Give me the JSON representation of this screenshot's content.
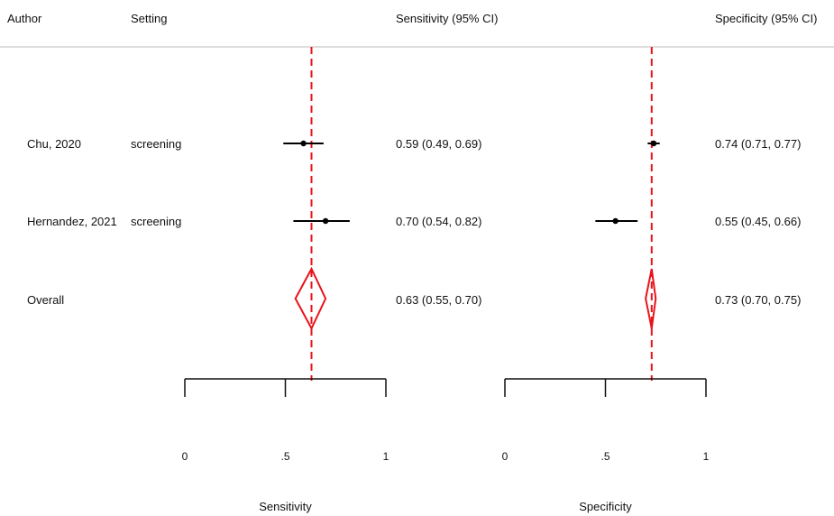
{
  "headers": {
    "author": "Author",
    "setting": "Setting",
    "sensitivity_col": "Sensitivity (95% CI)",
    "specificity_col": "Specificity (95% CI)"
  },
  "rows": [
    {
      "author": "Chu, 2020",
      "setting": "screening",
      "sensitivity_text": "0.59 (0.49, 0.69)",
      "specificity_text": "0.74 (0.71, 0.77)"
    },
    {
      "author": "Hernandez, 2021",
      "setting": "screening",
      "sensitivity_text": "0.70 (0.54, 0.82)",
      "specificity_text": "0.55 (0.45, 0.66)"
    },
    {
      "author": "Overall",
      "setting": "",
      "sensitivity_text": "0.63 (0.55, 0.70)",
      "specificity_text": "0.73 (0.70, 0.75)"
    }
  ],
  "axes": {
    "sensitivity": {
      "title": "Sensitivity",
      "ticks": [
        0,
        0.5,
        1
      ],
      "tick_labels": [
        "0",
        ".5",
        "1"
      ]
    },
    "specificity": {
      "title": "Specificity",
      "ticks": [
        0,
        0.5,
        1
      ],
      "tick_labels": [
        "0",
        ".5",
        "1"
      ]
    }
  },
  "colors": {
    "text": "#111111",
    "study": "#000000",
    "overall": "#e8141b",
    "reference_line": "#e8141b",
    "header_rule": "#bdbdbd"
  },
  "chart_data": [
    {
      "type": "forest",
      "xlabel": "Sensitivity",
      "xlim": [
        0,
        1
      ],
      "series": [
        {
          "name": "Chu, 2020",
          "estimate": 0.59,
          "lower": 0.49,
          "upper": 0.69
        },
        {
          "name": "Hernandez, 2021",
          "estimate": 0.7,
          "lower": 0.54,
          "upper": 0.82
        }
      ],
      "overall": {
        "estimate": 0.63,
        "lower": 0.55,
        "upper": 0.7
      },
      "reference_line": 0.63
    },
    {
      "type": "forest",
      "xlabel": "Specificity",
      "xlim": [
        0,
        1
      ],
      "series": [
        {
          "name": "Chu, 2020",
          "estimate": 0.74,
          "lower": 0.71,
          "upper": 0.77
        },
        {
          "name": "Hernandez, 2021",
          "estimate": 0.55,
          "lower": 0.45,
          "upper": 0.66
        }
      ],
      "overall": {
        "estimate": 0.73,
        "lower": 0.7,
        "upper": 0.75
      },
      "reference_line": 0.73
    }
  ]
}
